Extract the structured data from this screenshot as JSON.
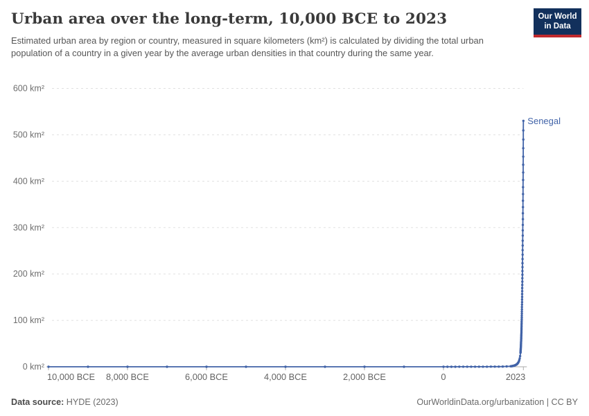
{
  "header": {
    "title": "Urban area over the long-term, 10,000 BCE to 2023",
    "subtitle": "Estimated urban area by region or country, measured in square kilometers (km²) is calculated by dividing the total urban population of a country in a given year by the average urban densities in that country during the same year.",
    "logo": {
      "line1": "Our World",
      "line2": "in Data",
      "background": "#12305c",
      "underline": "#c0292d"
    }
  },
  "chart_data": {
    "type": "line",
    "title": "Urban area over the long-term, 10,000 BCE to 2023",
    "xlabel": "",
    "ylabel": "",
    "units": "km²",
    "xlim": [
      -10000,
      2023
    ],
    "ylim": [
      0,
      600
    ],
    "grid": "horizontal-dashed",
    "legend_position": "end-of-line-label",
    "xticks": [
      {
        "value": -10000,
        "label": "10,000 BCE"
      },
      {
        "value": -8000,
        "label": "8,000 BCE"
      },
      {
        "value": -6000,
        "label": "6,000 BCE"
      },
      {
        "value": -4000,
        "label": "4,000 BCE"
      },
      {
        "value": -2000,
        "label": "2,000 BCE"
      },
      {
        "value": 0,
        "label": "0"
      },
      {
        "value": 2023,
        "label": "2023"
      }
    ],
    "yticks": [
      {
        "value": 0,
        "label": "0 km²"
      },
      {
        "value": 100,
        "label": "100 km²"
      },
      {
        "value": 200,
        "label": "200 km²"
      },
      {
        "value": 300,
        "label": "300 km²"
      },
      {
        "value": 400,
        "label": "400 km²"
      },
      {
        "value": 500,
        "label": "500 km²"
      },
      {
        "value": 600,
        "label": "600 km²"
      }
    ],
    "series": [
      {
        "name": "Senegal",
        "color": "#4163a8",
        "points": [
          [
            -10000,
            0
          ],
          [
            -9000,
            0
          ],
          [
            -8000,
            0
          ],
          [
            -7000,
            0
          ],
          [
            -6000,
            0
          ],
          [
            -5000,
            0
          ],
          [
            -4000,
            0
          ],
          [
            -3000,
            0
          ],
          [
            -2000,
            0
          ],
          [
            -1000,
            0
          ],
          [
            0,
            0.03
          ],
          [
            100,
            0.05
          ],
          [
            200,
            0.06
          ],
          [
            300,
            0.07
          ],
          [
            400,
            0.08
          ],
          [
            500,
            0.09
          ],
          [
            600,
            0.1
          ],
          [
            700,
            0.12
          ],
          [
            800,
            0.14
          ],
          [
            900,
            0.16
          ],
          [
            1000,
            0.19
          ],
          [
            1100,
            0.22
          ],
          [
            1200,
            0.26
          ],
          [
            1300,
            0.3
          ],
          [
            1400,
            0.36
          ],
          [
            1500,
            0.45
          ],
          [
            1600,
            0.7
          ],
          [
            1700,
            1.1
          ],
          [
            1710,
            1.2
          ],
          [
            1720,
            1.3
          ],
          [
            1730,
            1.4
          ],
          [
            1740,
            1.55
          ],
          [
            1750,
            1.7
          ],
          [
            1760,
            1.9
          ],
          [
            1770,
            2.1
          ],
          [
            1780,
            2.3
          ],
          [
            1790,
            2.6
          ],
          [
            1800,
            2.9
          ],
          [
            1810,
            3.2
          ],
          [
            1820,
            3.6
          ],
          [
            1830,
            4
          ],
          [
            1840,
            4.5
          ],
          [
            1850,
            5
          ],
          [
            1860,
            5.7
          ],
          [
            1870,
            6.5
          ],
          [
            1880,
            7.5
          ],
          [
            1890,
            8.7
          ],
          [
            1900,
            10
          ],
          [
            1910,
            12
          ],
          [
            1920,
            14.5
          ],
          [
            1930,
            18
          ],
          [
            1940,
            23
          ],
          [
            1950,
            30
          ],
          [
            1951,
            31.2
          ],
          [
            1952,
            32.5
          ],
          [
            1953,
            33.8
          ],
          [
            1954,
            35.1
          ],
          [
            1955,
            36.5
          ],
          [
            1956,
            38
          ],
          [
            1957,
            39.5
          ],
          [
            1958,
            41.1
          ],
          [
            1959,
            42.8
          ],
          [
            1960,
            44.5
          ],
          [
            1961,
            46.3
          ],
          [
            1962,
            48.1
          ],
          [
            1963,
            50.1
          ],
          [
            1964,
            52.1
          ],
          [
            1965,
            54.2
          ],
          [
            1966,
            56.4
          ],
          [
            1967,
            58.6
          ],
          [
            1968,
            61
          ],
          [
            1969,
            63.4
          ],
          [
            1970,
            66
          ],
          [
            1971,
            68.6
          ],
          [
            1972,
            71.4
          ],
          [
            1973,
            74.2
          ],
          [
            1974,
            77.2
          ],
          [
            1975,
            80.3
          ],
          [
            1976,
            83.5
          ],
          [
            1977,
            86.9
          ],
          [
            1978,
            90.4
          ],
          [
            1979,
            94
          ],
          [
            1980,
            97.8
          ],
          [
            1981,
            101.7
          ],
          [
            1982,
            105.8
          ],
          [
            1983,
            110
          ],
          [
            1984,
            114.4
          ],
          [
            1985,
            119
          ],
          [
            1986,
            123.8
          ],
          [
            1987,
            128.8
          ],
          [
            1988,
            134
          ],
          [
            1989,
            139.3
          ],
          [
            1990,
            144.9
          ],
          [
            1991,
            150.7
          ],
          [
            1992,
            156.8
          ],
          [
            1993,
            163.1
          ],
          [
            1994,
            169.6
          ],
          [
            1995,
            176.4
          ],
          [
            1996,
            183.5
          ],
          [
            1997,
            190.8
          ],
          [
            1998,
            198.5
          ],
          [
            1999,
            206.4
          ],
          [
            2000,
            214.7
          ],
          [
            2001,
            223.3
          ],
          [
            2002,
            232.3
          ],
          [
            2003,
            241.6
          ],
          [
            2004,
            251.3
          ],
          [
            2005,
            261.3
          ],
          [
            2006,
            271.8
          ],
          [
            2007,
            282.7
          ],
          [
            2008,
            294
          ],
          [
            2009,
            305.8
          ],
          [
            2010,
            318.1
          ],
          [
            2011,
            330.8
          ],
          [
            2012,
            344.1
          ],
          [
            2013,
            357.9
          ],
          [
            2014,
            372.2
          ],
          [
            2015,
            387.1
          ],
          [
            2016,
            402.6
          ],
          [
            2017,
            418.7
          ],
          [
            2018,
            435.5
          ],
          [
            2019,
            452.9
          ],
          [
            2020,
            471.1
          ],
          [
            2021,
            489.9
          ],
          [
            2022,
            509.5
          ],
          [
            2023,
            530
          ]
        ]
      }
    ]
  },
  "footer": {
    "source_label": "Data source:",
    "source_value": " HYDE (2023)",
    "credit": "OurWorldinData.org/urbanization | CC BY"
  }
}
